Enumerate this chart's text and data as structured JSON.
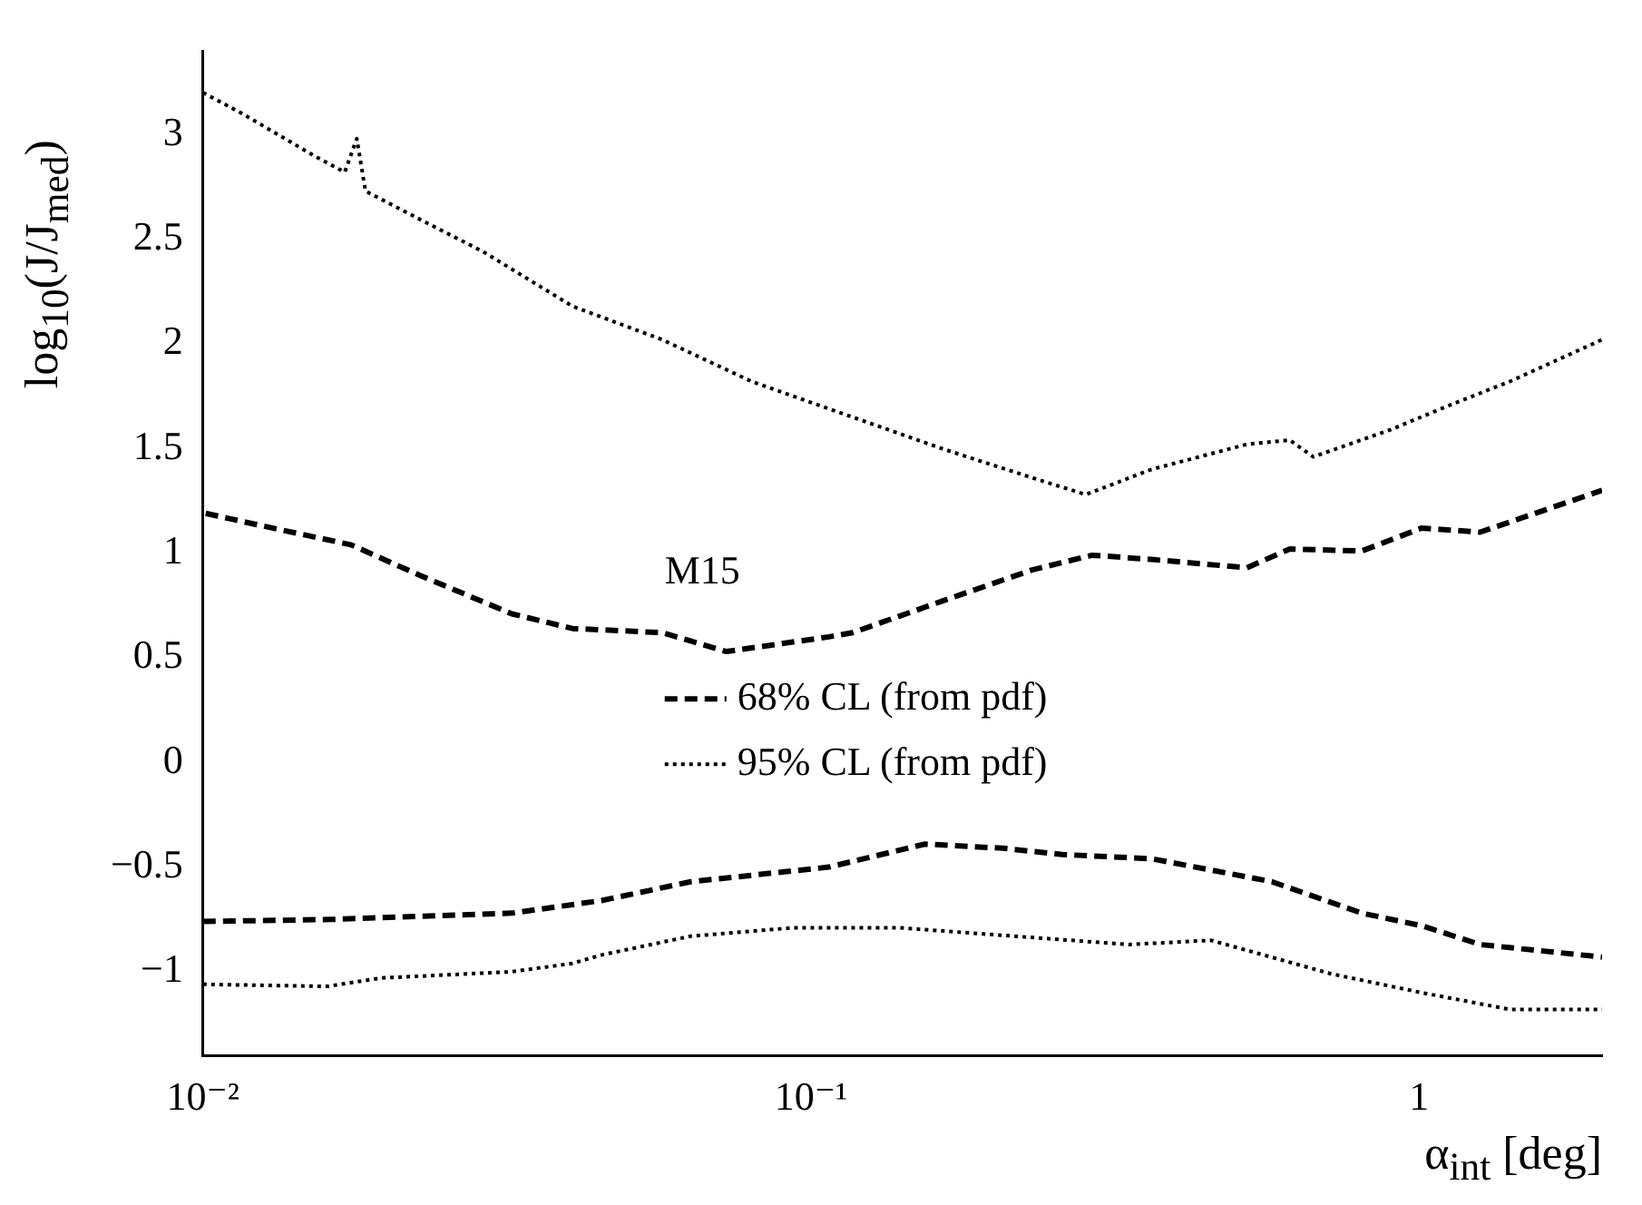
{
  "chart_data": {
    "type": "line",
    "xlabel": "α$_{int}$ [deg]",
    "ylabel": "log$_{10}$(J/J$_{med}$)",
    "annotations": [
      "M15"
    ],
    "log": "x",
    "grid": false,
    "legend": "center",
    "marker": "none",
    "xlim": [
      0.01,
      2
    ],
    "xticks": [
      {
        "value": 0.01,
        "label": "10⁻²"
      },
      {
        "value": 0.1,
        "label": "10⁻¹"
      },
      1
    ],
    "ylim": [
      -1.4,
      3.4
    ],
    "yticks": [
      -1,
      -0.5,
      0,
      0.5,
      1,
      1.5,
      2,
      2.5,
      3
    ],
    "series": [
      {
        "name": "68% CL (from pdf)",
        "color": "#000000",
        "line_style": "dashed",
        "x": [
          0.0101,
          0.013,
          0.0175,
          0.0229,
          0.0322,
          0.0405,
          0.0569,
          0.0726,
          0.107,
          0.117,
          0.164,
          0.231,
          0.29,
          0.363,
          0.521,
          0.613,
          0.805,
          1.01,
          1.26,
          2
        ],
        "values": [
          1.19,
          1.12,
          1.04,
          0.89,
          0.71,
          0.64,
          0.62,
          0.53,
          0.6,
          0.62,
          0.77,
          0.92,
          0.99,
          0.97,
          0.93,
          1.02,
          1.01,
          1.12,
          1.1,
          1.3
        ]
      },
      {
        "color": "#000000",
        "line_style": "dashed",
        "x": [
          0.01,
          0.0163,
          0.0322,
          0.0452,
          0.0634,
          0.107,
          0.154,
          0.207,
          0.259,
          0.363,
          0.573,
          0.805,
          1.01,
          1.26,
          2
        ],
        "values": [
          -0.76,
          -0.75,
          -0.72,
          -0.66,
          -0.57,
          -0.5,
          -0.39,
          -0.41,
          -0.44,
          -0.46,
          -0.57,
          -0.72,
          -0.78,
          -0.87,
          -0.93
        ]
      },
      {
        "name": "95% CL (from pdf)",
        "color": "#000000",
        "line_style": "dotted",
        "x": [
          0.01,
          0.0116,
          0.0152,
          0.0171,
          0.0179,
          0.0185,
          0.0229,
          0.0289,
          0.0405,
          0.0569,
          0.0799,
          0.1,
          0.164,
          0.231,
          0.283,
          0.363,
          0.521,
          0.613,
          0.67,
          0.898,
          1.13,
          1.41,
          2
        ],
        "values": [
          3.2,
          3.1,
          2.9,
          2.82,
          2.98,
          2.73,
          2.59,
          2.44,
          2.18,
          2.02,
          1.82,
          1.72,
          1.5,
          1.36,
          1.28,
          1.4,
          1.52,
          1.54,
          1.46,
          1.59,
          1.71,
          1.82,
          2.02
        ]
      },
      {
        "color": "#000000",
        "line_style": "dotted",
        "x": [
          0.01,
          0.016,
          0.0196,
          0.0322,
          0.0405,
          0.0452,
          0.0634,
          0.0935,
          0.14,
          0.333,
          0.455,
          0.717,
          1.01,
          1.41,
          2
        ],
        "values": [
          -1.06,
          -1.07,
          -1.03,
          -1.0,
          -0.96,
          -0.92,
          -0.83,
          -0.79,
          -0.79,
          -0.87,
          -0.85,
          -1.01,
          -1.1,
          -1.18,
          -1.18
        ]
      }
    ]
  }
}
